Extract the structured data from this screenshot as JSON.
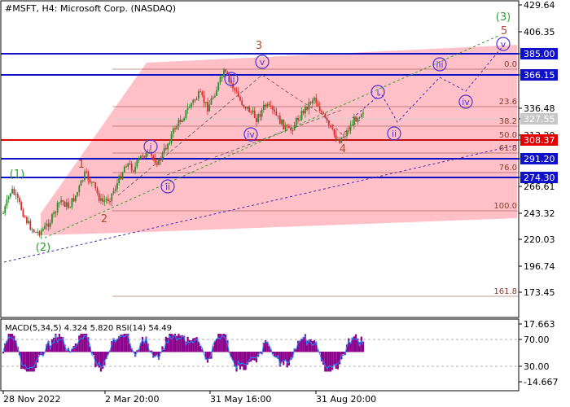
{
  "chart_data": {
    "type": "candlestick",
    "title": "#MSFT, H4:  Microsoft Corp. (NASDAQ)",
    "price_axis": {
      "ticks": [
        "429.64",
        "406.35",
        "385.00",
        "366.15",
        "336.48",
        "327.55",
        "313.20",
        "308.37",
        "291.20",
        "274.30",
        "266.61",
        "243.32",
        "220.03",
        "196.74",
        "173.45"
      ],
      "range": [
        160,
        430
      ]
    },
    "x_axis": {
      "ticks": [
        "28 Nov 2022",
        "2 Mar 20:00",
        "31 May 16:00",
        "31 Aug 20:00"
      ]
    },
    "horizontal_levels": [
      {
        "price": 385.0,
        "label": "385.00",
        "color": "#1010c8"
      },
      {
        "price": 366.15,
        "label": "366.15",
        "color": "#1010c8"
      },
      {
        "price": 308.37,
        "label": "308.37",
        "color": "#e00000"
      },
      {
        "price": 291.2,
        "label": "291.20",
        "color": "#1010c8"
      },
      {
        "price": 274.3,
        "label": "274.30",
        "color": "#1010c8"
      },
      {
        "price": 327.55,
        "label": "327.55",
        "color": "#b0b0b0"
      }
    ],
    "fibonacci_levels": [
      {
        "label": "0.0",
        "price": 366.15
      },
      {
        "label": "23.6",
        "price": 339.5
      },
      {
        "label": "38.2",
        "price": 324.0
      },
      {
        "label": "50.0",
        "price": 310.7
      },
      {
        "label": "61.8",
        "price": 297.3
      },
      {
        "label": "76.0",
        "price": 281.3
      },
      {
        "label": "100.0",
        "price": 254.2
      },
      {
        "label": "161.8",
        "price": 184.4
      }
    ],
    "wave_labels": [
      {
        "text": "(1)",
        "style": "green"
      },
      {
        "text": "(2)",
        "style": "green"
      },
      {
        "text": "(3)",
        "style": "green"
      },
      {
        "text": "1",
        "style": "brown"
      },
      {
        "text": "2",
        "style": "brown"
      },
      {
        "text": "3",
        "style": "brown"
      },
      {
        "text": "4",
        "style": "brown"
      },
      {
        "text": "5",
        "style": "brown"
      },
      {
        "text": "i",
        "style": "circle"
      },
      {
        "text": "ii",
        "style": "circle"
      },
      {
        "text": "iii",
        "style": "circle"
      },
      {
        "text": "iv",
        "style": "circle"
      },
      {
        "text": "v",
        "style": "circle"
      },
      {
        "text": "i",
        "style": "circle"
      },
      {
        "text": "ii",
        "style": "circle"
      },
      {
        "text": "iii",
        "style": "circle"
      },
      {
        "text": "iv",
        "style": "circle"
      },
      {
        "text": "v",
        "style": "circle"
      }
    ],
    "price_path": [
      240,
      262,
      248,
      231,
      222,
      226,
      236,
      252,
      246,
      258,
      276,
      266,
      250,
      254,
      268,
      286,
      280,
      294,
      292,
      286,
      302,
      318,
      328,
      340,
      348,
      336,
      352,
      368,
      356,
      342,
      334,
      326,
      338,
      332,
      322,
      314,
      326,
      336,
      346,
      330,
      316,
      306,
      314,
      326,
      334
    ],
    "indicator": {
      "label": "MACD(5,34,5) 4.324 5.820 RSI(14) 54.49",
      "axis_ticks": [
        "17.663",
        "70.00",
        "30.00",
        "-14.667"
      ],
      "levels": [
        70,
        30
      ]
    }
  },
  "colors": {
    "channel_fill": "#ffc0c8",
    "level_blue": "#1010c8",
    "level_red": "#e00000",
    "wave_green": "#2ca02c",
    "wave_brown": "#b04a30",
    "wave_circle": "#5030d0",
    "candle_up": "#2e8b2e",
    "candle_down": "#d03030",
    "macd_hist": "#8b008b",
    "rsi_line": "#1e90ff"
  }
}
